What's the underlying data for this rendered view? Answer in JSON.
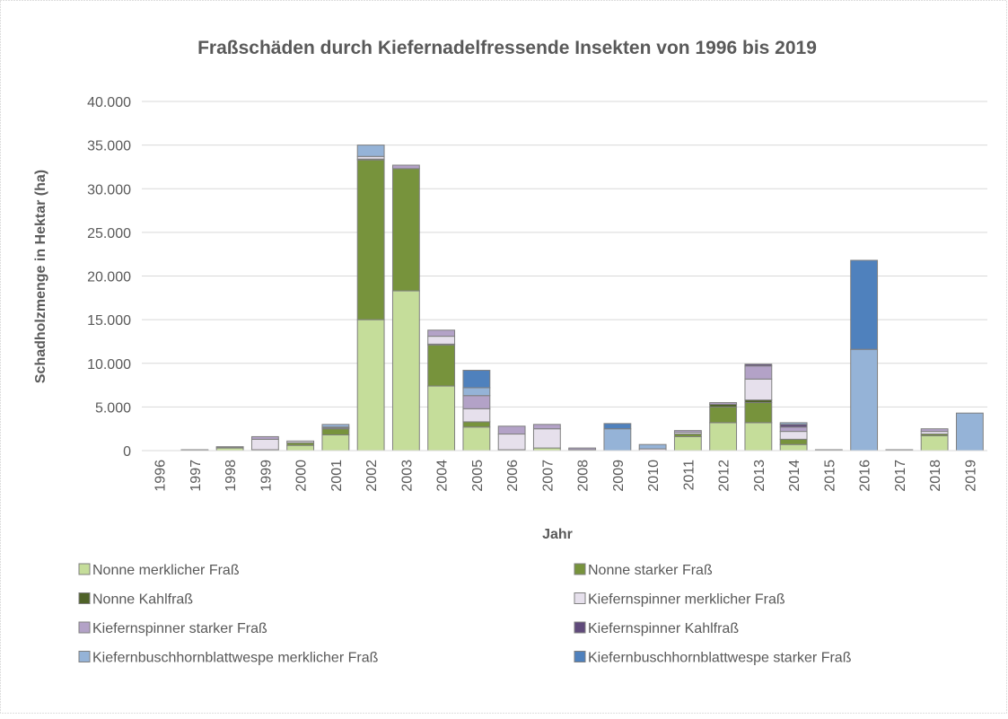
{
  "chart_data": {
    "type": "stacked_bar",
    "title": "Fraßschäden durch Kiefernadelfressende Insekten von 1996 bis 2019",
    "x_label": "Jahr",
    "y_label": "Schadholzmenge in Hektar (ha)",
    "categories": [
      "1996",
      "1997",
      "1998",
      "1999",
      "2000",
      "2001",
      "2002",
      "2003",
      "2004",
      "2005",
      "2006",
      "2007",
      "2008",
      "2009",
      "2010",
      "2011",
      "2012",
      "2013",
      "2014",
      "2015",
      "2016",
      "2017",
      "2018",
      "2019"
    ],
    "series": [
      {
        "name": "Nonne merklicher Fraß",
        "color": "#c5dd9a",
        "values": [
          0,
          50,
          300,
          100,
          600,
          1800,
          15000,
          18300,
          7400,
          2700,
          100,
          300,
          100,
          0,
          0,
          1600,
          3200,
          3200,
          700,
          100,
          0,
          0,
          1700,
          0
        ]
      },
      {
        "name": "Nonne starker Fraß",
        "color": "#77933c",
        "values": [
          0,
          0,
          100,
          0,
          300,
          700,
          18300,
          14000,
          4700,
          600,
          0,
          0,
          0,
          0,
          0,
          300,
          1800,
          2300,
          600,
          0,
          0,
          0,
          200,
          0
        ]
      },
      {
        "name": "Nonne Kahlfraß",
        "color": "#4f6228",
        "values": [
          0,
          0,
          0,
          0,
          0,
          0,
          100,
          0,
          100,
          0,
          0,
          0,
          0,
          0,
          0,
          0,
          300,
          300,
          0,
          0,
          0,
          0,
          0,
          0
        ]
      },
      {
        "name": "Kiefernspinner merklicher Fraß",
        "color": "#e6e0ec",
        "values": [
          0,
          50,
          50,
          1200,
          200,
          100,
          300,
          0,
          900,
          1500,
          1800,
          2200,
          0,
          0,
          200,
          200,
          0,
          2400,
          900,
          0,
          0,
          100,
          300,
          0
        ]
      },
      {
        "name": "Kiefernspinner starker Fraß",
        "color": "#b3a2c7",
        "values": [
          0,
          0,
          0,
          300,
          0,
          100,
          0,
          400,
          700,
          1500,
          900,
          500,
          200,
          0,
          0,
          200,
          200,
          1500,
          500,
          0,
          0,
          0,
          300,
          0
        ]
      },
      {
        "name": "Kiefernspinner Kahlfraß",
        "color": "#604a7b",
        "values": [
          0,
          0,
          0,
          0,
          0,
          0,
          0,
          0,
          0,
          0,
          0,
          0,
          0,
          0,
          0,
          0,
          0,
          200,
          300,
          0,
          0,
          0,
          0,
          0
        ]
      },
      {
        "name": "Kiefernbuschhornblattwespe merklicher Fraß",
        "color": "#95b3d7",
        "values": [
          0,
          0,
          0,
          0,
          0,
          300,
          1300,
          0,
          0,
          900,
          0,
          0,
          0,
          2500,
          500,
          0,
          0,
          0,
          200,
          0,
          11600,
          0,
          0,
          4300
        ]
      },
      {
        "name": "Kiefernbuschhornblattwespe starker Fraß",
        "color": "#4f81bd",
        "values": [
          0,
          0,
          0,
          0,
          0,
          0,
          0,
          0,
          0,
          2000,
          0,
          0,
          0,
          600,
          0,
          0,
          0,
          0,
          0,
          0,
          10200,
          0,
          0,
          0
        ]
      }
    ],
    "ylim": [
      0,
      40000
    ],
    "yticks": [
      0,
      {
        "value": 5000,
        "label": "5.000"
      },
      {
        "value": 10000,
        "label": "10.000"
      },
      {
        "value": 15000,
        "label": "15.000"
      },
      {
        "value": 20000,
        "label": "20.000"
      },
      {
        "value": 25000,
        "label": "25.000"
      },
      {
        "value": 30000,
        "label": "30.000"
      },
      {
        "value": 35000,
        "label": "35.000"
      },
      {
        "value": 40000,
        "label": "40.000"
      }
    ],
    "grid": true
  }
}
